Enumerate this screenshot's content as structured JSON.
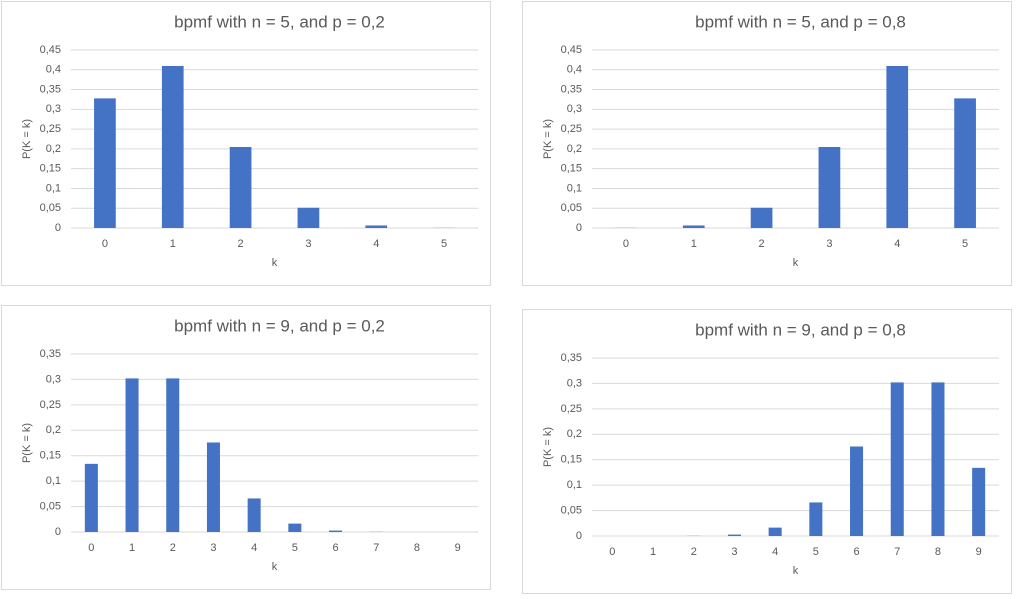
{
  "chart_data": [
    {
      "type": "bar",
      "title": "bpmf with n = 5, and p = 0,2",
      "x_label": "k",
      "y_label": "P(K = k)",
      "categories": [
        "0",
        "1",
        "2",
        "3",
        "4",
        "5"
      ],
      "values": [
        0.32768,
        0.4096,
        0.2048,
        0.0512,
        0.0064,
        0.00032
      ],
      "color": "#4472c4",
      "ylim": [
        0,
        0.45
      ],
      "yticks": [
        0,
        {
          "value": 0.05,
          "label": "0,05"
        },
        {
          "value": 0.1,
          "label": "0,1"
        },
        {
          "value": 0.15,
          "label": "0,15"
        },
        {
          "value": 0.2,
          "label": "0,2"
        },
        {
          "value": 0.25,
          "label": "0,25"
        },
        {
          "value": 0.3,
          "label": "0,3"
        },
        {
          "value": 0.35,
          "label": "0,35"
        },
        {
          "value": 0.4,
          "label": "0,4"
        },
        {
          "value": 0.45,
          "label": "0,45"
        }
      ],
      "grid": true
    },
    {
      "type": "bar",
      "title": "bpmf with n = 5, and p = 0,8",
      "x_label": "k",
      "y_label": "P(K = k)",
      "categories": [
        "0",
        "1",
        "2",
        "3",
        "4",
        "5"
      ],
      "values": [
        0.00032,
        0.0064,
        0.0512,
        0.2048,
        0.4096,
        0.32768
      ],
      "color": "#4472c4",
      "ylim": [
        0,
        0.45
      ],
      "yticks": [
        0,
        {
          "value": 0.05,
          "label": "0,05"
        },
        {
          "value": 0.1,
          "label": "0,1"
        },
        {
          "value": 0.15,
          "label": "0,15"
        },
        {
          "value": 0.2,
          "label": "0,2"
        },
        {
          "value": 0.25,
          "label": "0,25"
        },
        {
          "value": 0.3,
          "label": "0,3"
        },
        {
          "value": 0.35,
          "label": "0,35"
        },
        {
          "value": 0.4,
          "label": "0,4"
        },
        {
          "value": 0.45,
          "label": "0,45"
        }
      ],
      "grid": true
    },
    {
      "type": "bar",
      "title": "bpmf with n = 9, and p = 0,2",
      "x_label": "k",
      "y_label": "P(K = k)",
      "categories": [
        "0",
        "1",
        "2",
        "3",
        "4",
        "5",
        "6",
        "7",
        "8",
        "9"
      ],
      "values": [
        0.134,
        0.302,
        0.302,
        0.176,
        0.066,
        0.0165,
        0.0028,
        0.0003,
        0,
        0
      ],
      "color": "#4472c4",
      "ylim": [
        0,
        0.35
      ],
      "yticks": [
        0,
        {
          "value": 0.05,
          "label": "0,05"
        },
        {
          "value": 0.1,
          "label": "0,1"
        },
        {
          "value": 0.15,
          "label": "0,15"
        },
        {
          "value": 0.2,
          "label": "0,2"
        },
        {
          "value": 0.25,
          "label": "0,25"
        },
        {
          "value": 0.3,
          "label": "0,3"
        },
        {
          "value": 0.35,
          "label": "0,35"
        }
      ],
      "grid": true
    },
    {
      "type": "bar",
      "title": "bpmf with n = 9, and p = 0,8",
      "x_label": "k",
      "y_label": "P(K = k)",
      "categories": [
        "0",
        "1",
        "2",
        "3",
        "4",
        "5",
        "6",
        "7",
        "8",
        "9"
      ],
      "values": [
        0,
        0,
        0.0003,
        0.0028,
        0.0165,
        0.066,
        0.176,
        0.302,
        0.302,
        0.134
      ],
      "color": "#4472c4",
      "ylim": [
        0,
        0.35
      ],
      "yticks": [
        0,
        {
          "value": 0.05,
          "label": "0,05"
        },
        {
          "value": 0.1,
          "label": "0,1"
        },
        {
          "value": 0.15,
          "label": "0,15"
        },
        {
          "value": 0.2,
          "label": "0,2"
        },
        {
          "value": 0.25,
          "label": "0,25"
        },
        {
          "value": 0.3,
          "label": "0,3"
        },
        {
          "value": 0.35,
          "label": "0,35"
        }
      ],
      "grid": true
    }
  ]
}
